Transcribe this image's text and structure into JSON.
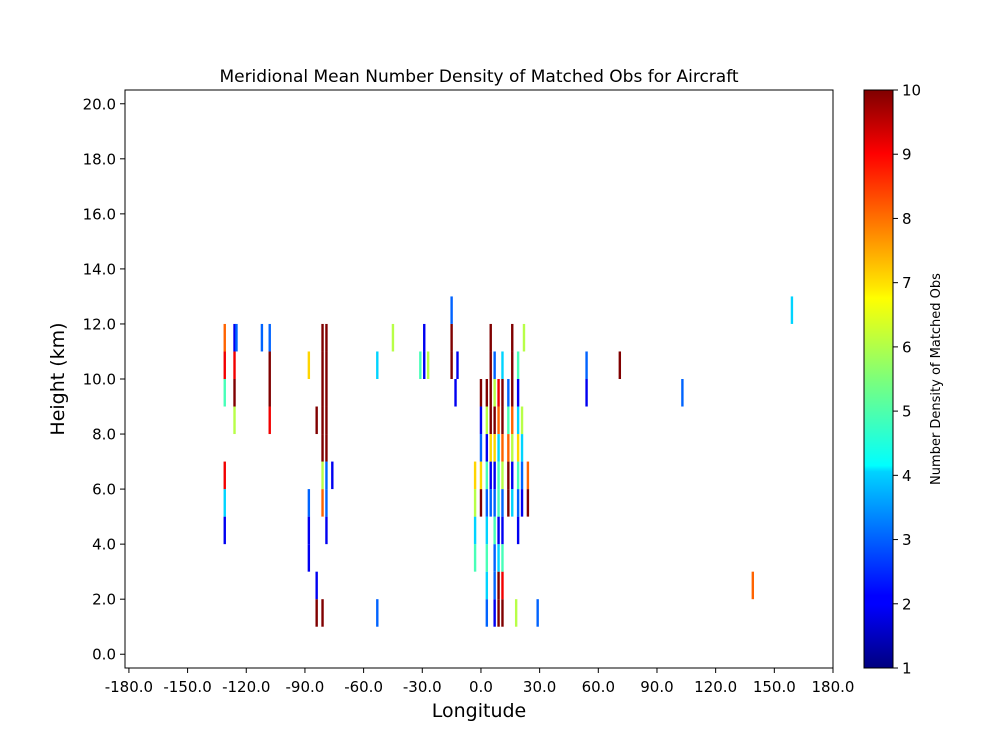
{
  "chart_data": {
    "type": "heatmap",
    "title": "Meridional Mean Number Density of Matched Obs for Aircraft",
    "xlabel": "Longitude",
    "ylabel": "Height (km)",
    "xlim": [
      -182,
      180
    ],
    "ylim": [
      -0.5,
      20.5
    ],
    "x_ticks": [
      -180,
      -150,
      -120,
      -90,
      -60,
      -30,
      0,
      30,
      60,
      90,
      120,
      150,
      180
    ],
    "x_tick_labels": [
      "-180.0",
      "-150.0",
      "-120.0",
      "-90.0",
      "-60.0",
      "-30.0",
      "0.0",
      "30.0",
      "60.0",
      "90.0",
      "120.0",
      "150.0",
      "180.0"
    ],
    "y_ticks": [
      0,
      2,
      4,
      6,
      8,
      10,
      12,
      14,
      16,
      18,
      20
    ],
    "y_tick_labels": [
      "0.0",
      "2.0",
      "4.0",
      "6.0",
      "8.0",
      "10.0",
      "12.0",
      "14.0",
      "16.0",
      "18.0",
      "20.0"
    ],
    "grid": false,
    "colorbar": {
      "label": "Number Density of Matched Obs",
      "min": 1,
      "max": 10,
      "ticks": [
        1,
        2,
        3,
        4,
        5,
        6,
        7,
        8,
        9,
        10
      ],
      "tick_labels": [
        "1",
        "2",
        "3",
        "4",
        "5",
        "6",
        "7",
        "8",
        "9",
        "10"
      ],
      "colormap": "jet"
    },
    "cells": [
      {
        "lon": -131,
        "h0": 9,
        "h1": 12,
        "values": [
          5,
          9,
          8
        ]
      },
      {
        "lon": -131,
        "h0": 4,
        "h1": 7,
        "values": [
          2,
          4,
          9
        ]
      },
      {
        "lon": -126,
        "h0": 8,
        "h1": 12,
        "values": [
          6,
          10,
          9,
          2
        ]
      },
      {
        "lon": -125,
        "h0": 11,
        "h1": 12,
        "values": [
          3
        ]
      },
      {
        "lon": -112,
        "h0": 11,
        "h1": 12,
        "values": [
          3
        ]
      },
      {
        "lon": -108,
        "h0": 8,
        "h1": 12,
        "values": [
          9,
          10,
          10,
          3
        ]
      },
      {
        "lon": -88,
        "h0": 10,
        "h1": 11,
        "values": [
          7
        ]
      },
      {
        "lon": -88,
        "h0": 3,
        "h1": 6,
        "values": [
          2,
          2,
          3
        ]
      },
      {
        "lon": -84,
        "h0": 8,
        "h1": 9,
        "values": [
          10
        ]
      },
      {
        "lon": -84,
        "h0": 1,
        "h1": 3,
        "values": [
          10,
          2
        ]
      },
      {
        "lon": -81,
        "h0": 5,
        "h1": 12,
        "values": [
          8,
          6,
          10,
          10,
          10,
          10,
          10
        ]
      },
      {
        "lon": -81,
        "h0": 1,
        "h1": 2,
        "values": [
          10
        ]
      },
      {
        "lon": -79,
        "h0": 4,
        "h1": 12,
        "values": [
          2,
          3,
          3,
          10,
          10,
          10,
          10,
          10
        ]
      },
      {
        "lon": -76,
        "h0": 6,
        "h1": 7,
        "values": [
          2
        ]
      },
      {
        "lon": -53,
        "h0": 10,
        "h1": 11,
        "values": [
          4
        ]
      },
      {
        "lon": -53,
        "h0": 1,
        "h1": 2,
        "values": [
          3
        ]
      },
      {
        "lon": -45,
        "h0": 11,
        "h1": 12,
        "values": [
          6
        ]
      },
      {
        "lon": -31,
        "h0": 10,
        "h1": 11,
        "values": [
          5
        ]
      },
      {
        "lon": -29,
        "h0": 10,
        "h1": 12,
        "values": [
          2,
          2
        ]
      },
      {
        "lon": -27,
        "h0": 10,
        "h1": 11,
        "values": [
          6
        ]
      },
      {
        "lon": -15,
        "h0": 10,
        "h1": 13,
        "values": [
          10,
          10,
          3
        ]
      },
      {
        "lon": -13,
        "h0": 9,
        "h1": 10,
        "values": [
          2
        ]
      },
      {
        "lon": -12,
        "h0": 10,
        "h1": 11,
        "values": [
          2
        ]
      },
      {
        "lon": -3,
        "h0": 3,
        "h1": 7,
        "values": [
          5,
          4,
          6,
          7
        ]
      },
      {
        "lon": 0,
        "h0": 5,
        "h1": 10,
        "values": [
          10,
          7,
          3,
          2,
          10
        ]
      },
      {
        "lon": 3,
        "h0": 1,
        "h1": 10,
        "values": [
          3,
          4,
          5,
          4,
          3,
          5,
          2,
          6,
          10
        ]
      },
      {
        "lon": 5,
        "h0": 5,
        "h1": 12,
        "values": [
          3,
          2,
          7,
          10,
          10,
          10,
          10
        ]
      },
      {
        "lon": 7,
        "h0": 1,
        "h1": 11,
        "values": [
          2,
          3,
          3,
          5,
          3,
          2,
          7,
          10,
          6,
          3
        ]
      },
      {
        "lon": 9,
        "h0": 1,
        "h1": 10,
        "values": [
          10,
          10,
          4,
          2,
          5,
          5,
          4,
          8,
          9
        ]
      },
      {
        "lon": 11,
        "h0": 1,
        "h1": 11,
        "values": [
          10,
          9,
          5,
          2,
          3,
          6,
          8,
          10,
          10,
          4
        ]
      },
      {
        "lon": 14,
        "h0": 5,
        "h1": 10,
        "values": [
          10,
          10,
          8,
          5,
          3
        ]
      },
      {
        "lon": 16,
        "h0": 5,
        "h1": 12,
        "values": [
          4,
          2,
          6,
          8,
          10,
          10,
          10
        ]
      },
      {
        "lon": 18,
        "h0": 1,
        "h1": 2,
        "values": [
          6
        ]
      },
      {
        "lon": 19,
        "h0": 4,
        "h1": 11,
        "values": [
          2,
          3,
          5,
          7,
          4,
          2,
          5
        ]
      },
      {
        "lon": 21,
        "h0": 5,
        "h1": 9,
        "values": [
          2,
          3,
          4,
          6
        ]
      },
      {
        "lon": 22,
        "h0": 11,
        "h1": 12,
        "values": [
          6
        ]
      },
      {
        "lon": 24,
        "h0": 5,
        "h1": 7,
        "values": [
          10,
          8
        ]
      },
      {
        "lon": 29,
        "h0": 1,
        "h1": 2,
        "values": [
          3
        ]
      },
      {
        "lon": 54,
        "h0": 9,
        "h1": 11,
        "values": [
          2,
          3
        ]
      },
      {
        "lon": 71,
        "h0": 10,
        "h1": 11,
        "values": [
          10
        ]
      },
      {
        "lon": 103,
        "h0": 9,
        "h1": 10,
        "values": [
          3
        ]
      },
      {
        "lon": 139,
        "h0": 2,
        "h1": 3,
        "values": [
          8
        ]
      },
      {
        "lon": 159,
        "h0": 12,
        "h1": 13,
        "values": [
          4
        ]
      }
    ]
  }
}
